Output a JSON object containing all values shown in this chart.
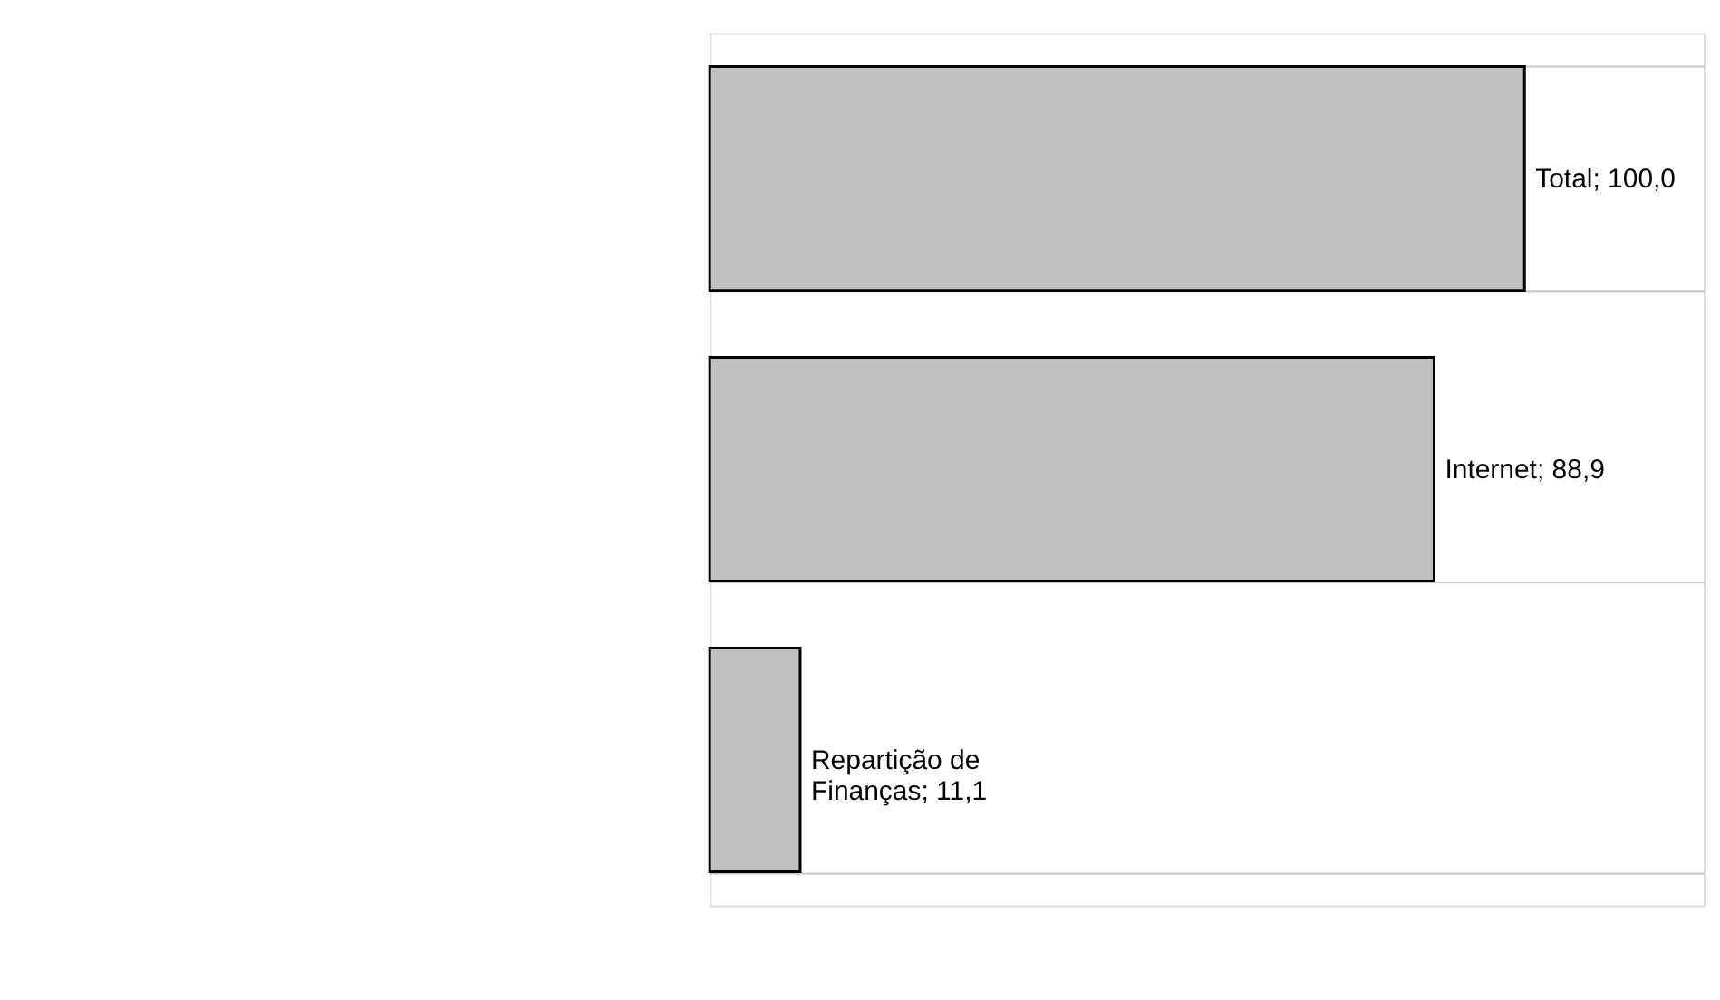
{
  "chart_data": {
    "type": "bar",
    "orientation": "horizontal",
    "categories": [
      null,
      null,
      null
    ],
    "values": [
      100.0,
      88.9,
      11.1
    ],
    "value_labels": [
      "Total; 100,0",
      "Internet; 88,9",
      "Repartição de Finanças; 11,1"
    ],
    "color": "#c0c0c0",
    "grid": "y",
    "tick_labels": false
  }
}
